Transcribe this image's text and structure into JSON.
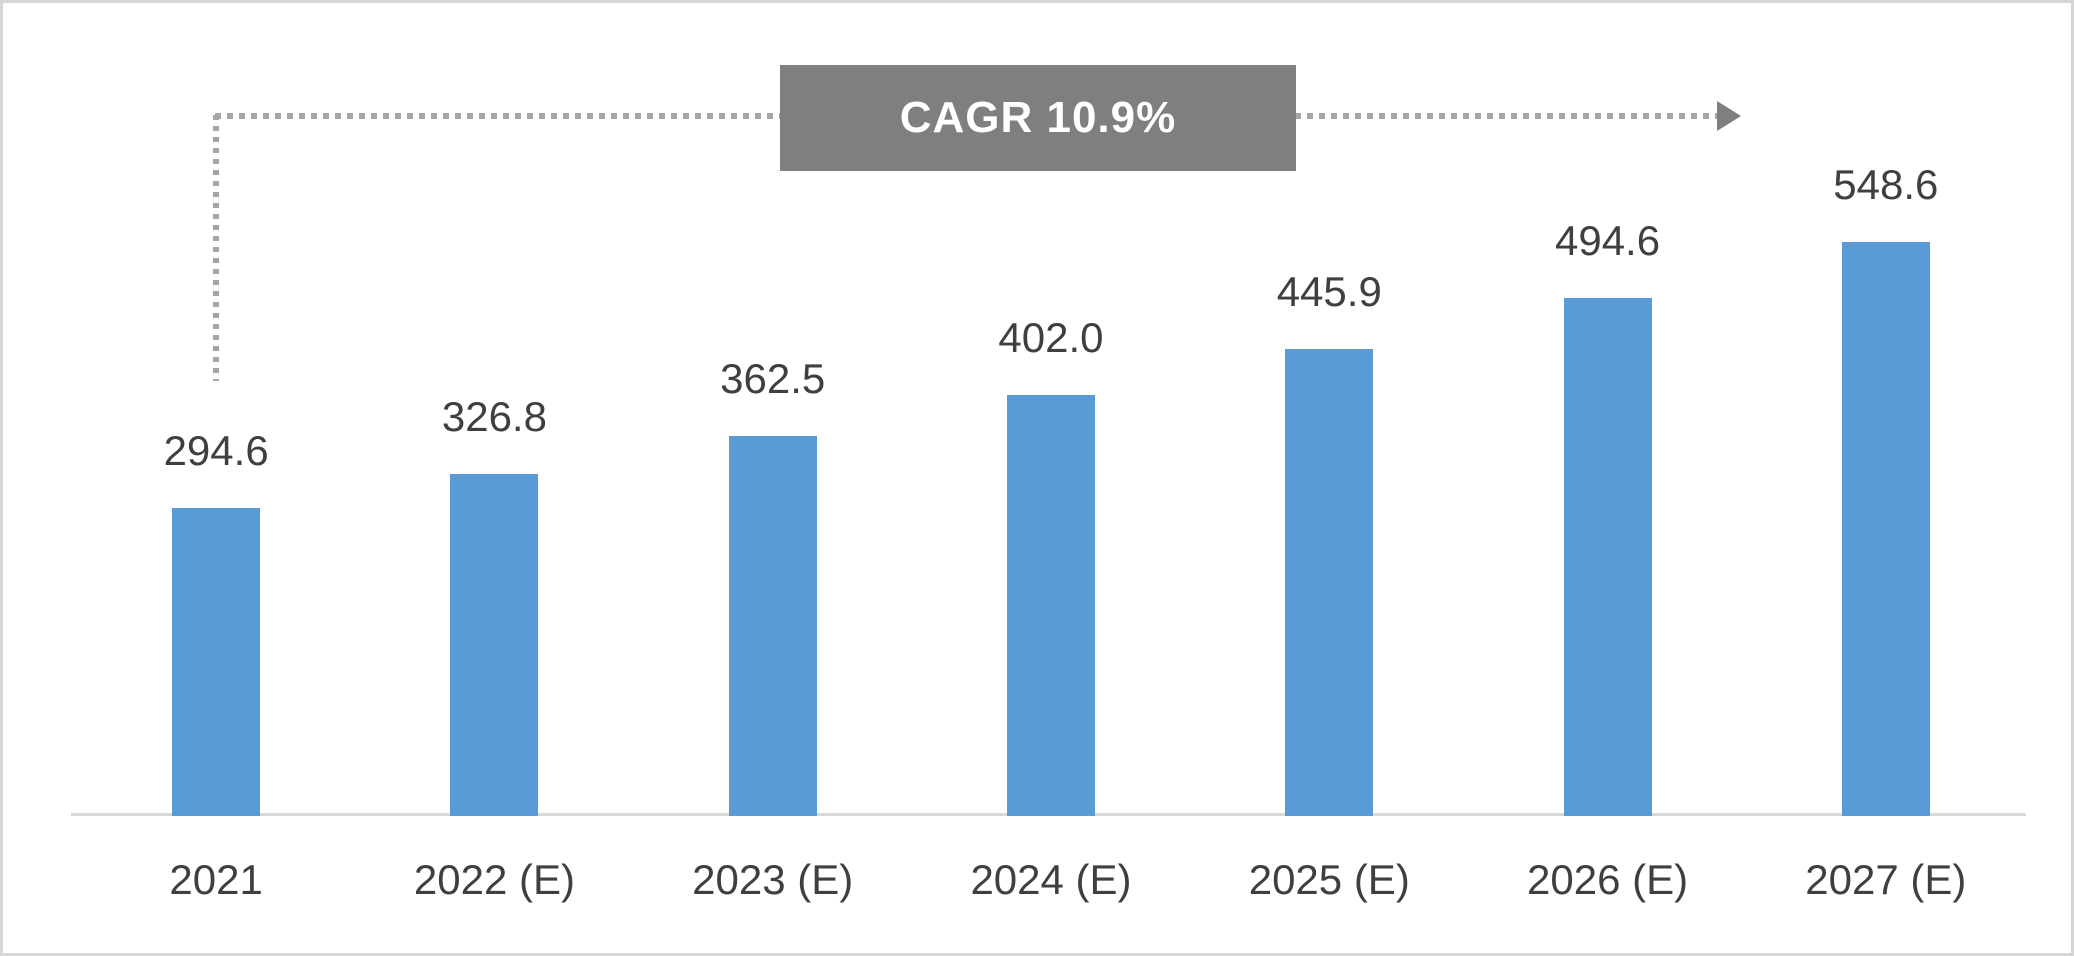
{
  "chart_data": {
    "type": "bar",
    "categories": [
      "2021",
      "2022 (E)",
      "2023 (E)",
      "2024 (E)",
      "2025 (E)",
      "2026 (E)",
      "2027 (E)"
    ],
    "values": [
      294.6,
      326.8,
      362.5,
      402.0,
      445.9,
      494.6,
      548.6
    ],
    "value_labels": [
      "294.6",
      "326.8",
      "362.5",
      "402.0",
      "445.9",
      "494.6",
      "548.6"
    ],
    "title": "",
    "xlabel": "",
    "ylabel": "",
    "ylim": [
      0,
      600
    ],
    "grid": false,
    "legend": null,
    "data_labels_position": "above-bars",
    "annotation": {
      "label": "CAGR 10.9%",
      "style": "gray-box-with-dotted-arrow",
      "arrow_from_category": "2021",
      "arrow_direction": "right"
    },
    "colors": {
      "bar": "#5b9bd5",
      "annotation_box": "#7f7f7f",
      "annotation_text": "#ffffff",
      "dotted_line": "#a6a6a6",
      "arrow_head": "#7f7f7f",
      "axis_line": "#d9d9d9",
      "label_text": "#3f3f3f",
      "card_border": "#d6d6d6",
      "background": "#ffffff"
    }
  }
}
